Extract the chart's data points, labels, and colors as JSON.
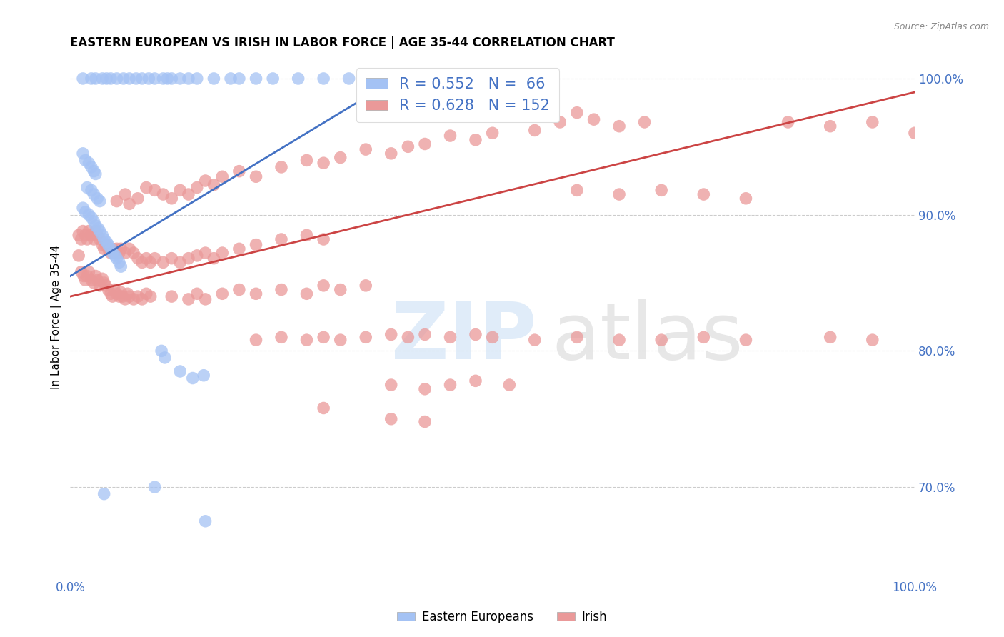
{
  "title": "EASTERN EUROPEAN VS IRISH IN LABOR FORCE | AGE 35-44 CORRELATION CHART",
  "source": "Source: ZipAtlas.com",
  "ylabel": "In Labor Force | Age 35-44",
  "xlim": [
    0.0,
    1.0
  ],
  "ylim": [
    0.635,
    1.015
  ],
  "y_tick_labels_right": [
    "70.0%",
    "80.0%",
    "90.0%",
    "100.0%"
  ],
  "y_tick_positions_right": [
    0.7,
    0.8,
    0.9,
    1.0
  ],
  "legend_blue_r": "R = 0.552",
  "legend_blue_n": "N =  66",
  "legend_pink_r": "R = 0.628",
  "legend_pink_n": "N = 152",
  "blue_color": "#a4c2f4",
  "pink_color": "#ea9999",
  "blue_line_color": "#4472c4",
  "pink_line_color": "#cc4444",
  "blue_scatter": [
    [
      0.015,
      1.0
    ],
    [
      0.025,
      1.0
    ],
    [
      0.03,
      1.0
    ],
    [
      0.038,
      1.0
    ],
    [
      0.043,
      1.0
    ],
    [
      0.048,
      1.0
    ],
    [
      0.055,
      1.0
    ],
    [
      0.063,
      1.0
    ],
    [
      0.07,
      1.0
    ],
    [
      0.078,
      1.0
    ],
    [
      0.085,
      1.0
    ],
    [
      0.093,
      1.0
    ],
    [
      0.1,
      1.0
    ],
    [
      0.11,
      1.0
    ],
    [
      0.115,
      1.0
    ],
    [
      0.12,
      1.0
    ],
    [
      0.13,
      1.0
    ],
    [
      0.14,
      1.0
    ],
    [
      0.15,
      1.0
    ],
    [
      0.17,
      1.0
    ],
    [
      0.19,
      1.0
    ],
    [
      0.2,
      1.0
    ],
    [
      0.22,
      1.0
    ],
    [
      0.24,
      1.0
    ],
    [
      0.27,
      1.0
    ],
    [
      0.3,
      1.0
    ],
    [
      0.33,
      1.0
    ],
    [
      0.36,
      1.0
    ],
    [
      0.015,
      0.945
    ],
    [
      0.018,
      0.94
    ],
    [
      0.022,
      0.938
    ],
    [
      0.025,
      0.935
    ],
    [
      0.028,
      0.932
    ],
    [
      0.03,
      0.93
    ],
    [
      0.02,
      0.92
    ],
    [
      0.025,
      0.918
    ],
    [
      0.028,
      0.915
    ],
    [
      0.032,
      0.912
    ],
    [
      0.035,
      0.91
    ],
    [
      0.015,
      0.905
    ],
    [
      0.018,
      0.902
    ],
    [
      0.022,
      0.9
    ],
    [
      0.025,
      0.898
    ],
    [
      0.028,
      0.895
    ],
    [
      0.03,
      0.892
    ],
    [
      0.033,
      0.89
    ],
    [
      0.035,
      0.888
    ],
    [
      0.038,
      0.885
    ],
    [
      0.04,
      0.882
    ],
    [
      0.043,
      0.88
    ],
    [
      0.045,
      0.878
    ],
    [
      0.048,
      0.875
    ],
    [
      0.05,
      0.872
    ],
    [
      0.053,
      0.87
    ],
    [
      0.055,
      0.868
    ],
    [
      0.058,
      0.865
    ],
    [
      0.06,
      0.862
    ],
    [
      0.108,
      0.8
    ],
    [
      0.112,
      0.795
    ],
    [
      0.13,
      0.785
    ],
    [
      0.145,
      0.78
    ],
    [
      0.158,
      0.782
    ],
    [
      0.04,
      0.695
    ],
    [
      0.1,
      0.7
    ],
    [
      0.16,
      0.675
    ]
  ],
  "pink_scatter": [
    [
      0.01,
      0.87
    ],
    [
      0.013,
      0.858
    ],
    [
      0.016,
      0.855
    ],
    [
      0.018,
      0.852
    ],
    [
      0.02,
      0.855
    ],
    [
      0.022,
      0.858
    ],
    [
      0.025,
      0.852
    ],
    [
      0.028,
      0.85
    ],
    [
      0.03,
      0.855
    ],
    [
      0.032,
      0.852
    ],
    [
      0.035,
      0.848
    ],
    [
      0.038,
      0.853
    ],
    [
      0.04,
      0.85
    ],
    [
      0.042,
      0.848
    ],
    [
      0.045,
      0.845
    ],
    [
      0.048,
      0.842
    ],
    [
      0.05,
      0.84
    ],
    [
      0.052,
      0.845
    ],
    [
      0.055,
      0.842
    ],
    [
      0.058,
      0.84
    ],
    [
      0.06,
      0.843
    ],
    [
      0.062,
      0.84
    ],
    [
      0.065,
      0.838
    ],
    [
      0.068,
      0.842
    ],
    [
      0.07,
      0.84
    ],
    [
      0.075,
      0.838
    ],
    [
      0.08,
      0.84
    ],
    [
      0.085,
      0.838
    ],
    [
      0.09,
      0.842
    ],
    [
      0.095,
      0.84
    ],
    [
      0.01,
      0.885
    ],
    [
      0.013,
      0.882
    ],
    [
      0.015,
      0.888
    ],
    [
      0.018,
      0.885
    ],
    [
      0.02,
      0.882
    ],
    [
      0.022,
      0.888
    ],
    [
      0.025,
      0.885
    ],
    [
      0.028,
      0.882
    ],
    [
      0.03,
      0.888
    ],
    [
      0.032,
      0.885
    ],
    [
      0.035,
      0.882
    ],
    [
      0.038,
      0.878
    ],
    [
      0.04,
      0.875
    ],
    [
      0.042,
      0.878
    ],
    [
      0.045,
      0.875
    ],
    [
      0.048,
      0.872
    ],
    [
      0.05,
      0.875
    ],
    [
      0.052,
      0.872
    ],
    [
      0.055,
      0.875
    ],
    [
      0.058,
      0.872
    ],
    [
      0.06,
      0.875
    ],
    [
      0.065,
      0.872
    ],
    [
      0.07,
      0.875
    ],
    [
      0.075,
      0.872
    ],
    [
      0.08,
      0.868
    ],
    [
      0.085,
      0.865
    ],
    [
      0.09,
      0.868
    ],
    [
      0.095,
      0.865
    ],
    [
      0.1,
      0.868
    ],
    [
      0.11,
      0.865
    ],
    [
      0.12,
      0.868
    ],
    [
      0.13,
      0.865
    ],
    [
      0.14,
      0.868
    ],
    [
      0.15,
      0.87
    ],
    [
      0.16,
      0.872
    ],
    [
      0.17,
      0.868
    ],
    [
      0.18,
      0.872
    ],
    [
      0.2,
      0.875
    ],
    [
      0.22,
      0.878
    ],
    [
      0.25,
      0.882
    ],
    [
      0.28,
      0.885
    ],
    [
      0.3,
      0.882
    ],
    [
      0.055,
      0.91
    ],
    [
      0.065,
      0.915
    ],
    [
      0.07,
      0.908
    ],
    [
      0.08,
      0.912
    ],
    [
      0.09,
      0.92
    ],
    [
      0.1,
      0.918
    ],
    [
      0.11,
      0.915
    ],
    [
      0.12,
      0.912
    ],
    [
      0.13,
      0.918
    ],
    [
      0.14,
      0.915
    ],
    [
      0.15,
      0.92
    ],
    [
      0.16,
      0.925
    ],
    [
      0.17,
      0.922
    ],
    [
      0.18,
      0.928
    ],
    [
      0.2,
      0.932
    ],
    [
      0.22,
      0.928
    ],
    [
      0.25,
      0.935
    ],
    [
      0.28,
      0.94
    ],
    [
      0.3,
      0.938
    ],
    [
      0.32,
      0.942
    ],
    [
      0.35,
      0.948
    ],
    [
      0.38,
      0.945
    ],
    [
      0.4,
      0.95
    ],
    [
      0.42,
      0.952
    ],
    [
      0.45,
      0.958
    ],
    [
      0.48,
      0.955
    ],
    [
      0.5,
      0.96
    ],
    [
      0.12,
      0.84
    ],
    [
      0.14,
      0.838
    ],
    [
      0.15,
      0.842
    ],
    [
      0.16,
      0.838
    ],
    [
      0.18,
      0.842
    ],
    [
      0.2,
      0.845
    ],
    [
      0.22,
      0.842
    ],
    [
      0.25,
      0.845
    ],
    [
      0.28,
      0.842
    ],
    [
      0.3,
      0.848
    ],
    [
      0.32,
      0.845
    ],
    [
      0.35,
      0.848
    ],
    [
      0.22,
      0.808
    ],
    [
      0.25,
      0.81
    ],
    [
      0.28,
      0.808
    ],
    [
      0.3,
      0.81
    ],
    [
      0.32,
      0.808
    ],
    [
      0.35,
      0.81
    ],
    [
      0.38,
      0.812
    ],
    [
      0.4,
      0.81
    ],
    [
      0.42,
      0.812
    ],
    [
      0.45,
      0.81
    ],
    [
      0.48,
      0.812
    ],
    [
      0.5,
      0.81
    ],
    [
      0.38,
      0.775
    ],
    [
      0.42,
      0.772
    ],
    [
      0.45,
      0.775
    ],
    [
      0.48,
      0.778
    ],
    [
      0.52,
      0.775
    ],
    [
      0.3,
      0.758
    ],
    [
      0.38,
      0.75
    ],
    [
      0.42,
      0.748
    ],
    [
      0.55,
      0.808
    ],
    [
      0.6,
      0.81
    ],
    [
      0.65,
      0.808
    ],
    [
      0.55,
      0.962
    ],
    [
      0.58,
      0.968
    ],
    [
      0.6,
      0.975
    ],
    [
      0.62,
      0.97
    ],
    [
      0.65,
      0.965
    ],
    [
      0.68,
      0.968
    ],
    [
      0.6,
      0.918
    ],
    [
      0.65,
      0.915
    ],
    [
      0.7,
      0.918
    ],
    [
      0.75,
      0.915
    ],
    [
      0.8,
      0.912
    ],
    [
      0.7,
      0.808
    ],
    [
      0.75,
      0.81
    ],
    [
      0.8,
      0.808
    ],
    [
      0.9,
      0.81
    ],
    [
      0.95,
      0.808
    ],
    [
      0.85,
      0.968
    ],
    [
      0.9,
      0.965
    ],
    [
      0.95,
      0.968
    ],
    [
      1.0,
      0.96
    ]
  ],
  "blue_trendline_x": [
    0.0,
    0.4
  ],
  "blue_trendline_y": [
    0.855,
    1.005
  ],
  "pink_trendline_x": [
    0.0,
    1.0
  ],
  "pink_trendline_y": [
    0.84,
    0.99
  ],
  "figsize": [
    14.06,
    8.92
  ],
  "dpi": 100
}
